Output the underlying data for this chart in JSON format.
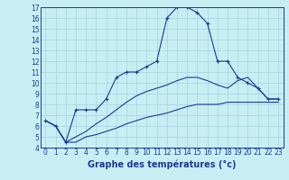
{
  "title": "",
  "xlabel": "Graphe des températures (°c)",
  "ylabel": "",
  "bg_color": "#c8eef4",
  "grid_color": "#a8d8e0",
  "line_color": "#1e3894",
  "xlim": [
    -0.5,
    23.5
  ],
  "ylim": [
    4,
    17
  ],
  "xticks": [
    0,
    1,
    2,
    3,
    4,
    5,
    6,
    7,
    8,
    9,
    10,
    11,
    12,
    13,
    14,
    15,
    16,
    17,
    18,
    19,
    20,
    21,
    22,
    23
  ],
  "yticks": [
    4,
    5,
    6,
    7,
    8,
    9,
    10,
    11,
    12,
    13,
    14,
    15,
    16,
    17
  ],
  "series1_x": [
    0,
    1,
    2,
    3,
    4,
    5,
    6,
    7,
    8,
    9,
    10,
    11,
    12,
    13,
    14,
    15,
    16,
    17,
    18,
    19,
    20,
    21,
    22,
    23
  ],
  "series1_y": [
    6.5,
    6.0,
    4.5,
    7.5,
    7.5,
    7.5,
    8.5,
    10.5,
    11.0,
    11.0,
    11.5,
    12.0,
    16.0,
    17.0,
    17.0,
    16.5,
    15.5,
    12.0,
    12.0,
    10.5,
    10.0,
    9.5,
    8.5,
    8.5
  ],
  "series2_x": [
    0,
    1,
    2,
    3,
    4,
    5,
    6,
    7,
    8,
    9,
    10,
    11,
    12,
    13,
    14,
    15,
    16,
    17,
    18,
    19,
    20,
    21,
    22,
    23
  ],
  "series2_y": [
    6.5,
    6.0,
    4.5,
    4.5,
    5.0,
    5.2,
    5.5,
    5.8,
    6.2,
    6.5,
    6.8,
    7.0,
    7.2,
    7.5,
    7.8,
    8.0,
    8.0,
    8.0,
    8.2,
    8.2,
    8.2,
    8.2,
    8.2,
    8.2
  ],
  "series3_x": [
    0,
    1,
    2,
    3,
    4,
    5,
    6,
    7,
    8,
    9,
    10,
    11,
    12,
    13,
    14,
    15,
    16,
    17,
    18,
    19,
    20,
    21,
    22,
    23
  ],
  "series3_y": [
    6.5,
    6.0,
    4.5,
    5.0,
    5.5,
    6.2,
    6.8,
    7.5,
    8.2,
    8.8,
    9.2,
    9.5,
    9.8,
    10.2,
    10.5,
    10.5,
    10.2,
    9.8,
    9.5,
    10.2,
    10.5,
    9.5,
    8.5,
    8.5
  ],
  "tick_fontsize": 5.5,
  "xlabel_fontsize": 7.0
}
